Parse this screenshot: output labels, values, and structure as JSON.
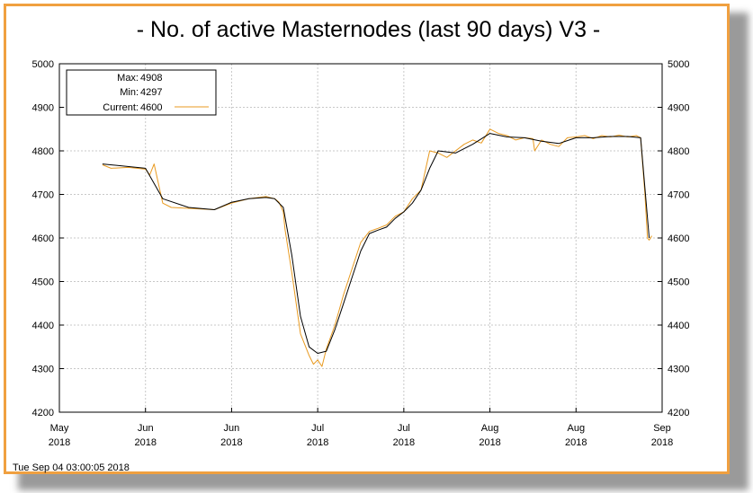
{
  "title": "- No. of active Masternodes (last 90 days) V3 -",
  "footer": "Tue Sep 04 03:00:05 2018",
  "legend": {
    "max_label": "Max:",
    "max_value": "4908",
    "min_label": "Min:",
    "min_value": "4297",
    "current_label": "Current:",
    "current_value": "4600"
  },
  "colors": {
    "frame": "#f0a040",
    "raw_series": "#e89a20",
    "smooth_series": "#000000",
    "grid": "#c8c8c8"
  },
  "chart_data": {
    "type": "line",
    "title": "- No. of active Masternodes (last 90 days) V3 -",
    "ylim": [
      4200,
      5000
    ],
    "y_ticks": [
      "4200",
      "4300",
      "4400",
      "4500",
      "4600",
      "4700",
      "4800",
      "4900",
      "5000"
    ],
    "x_ticks": [
      {
        "month": "May",
        "year": "2018"
      },
      {
        "month": "Jun",
        "year": "2018"
      },
      {
        "month": "Jun",
        "year": "2018"
      },
      {
        "month": "Jul",
        "year": "2018"
      },
      {
        "month": "Jul",
        "year": "2018"
      },
      {
        "month": "Aug",
        "year": "2018"
      },
      {
        "month": "Aug",
        "year": "2018"
      },
      {
        "month": "Sep",
        "year": "2018"
      }
    ],
    "grid": true,
    "legend_position": "top-left",
    "series": [
      {
        "name": "Current",
        "x": [
          0.5,
          0.6,
          0.8,
          1.0,
          1.05,
          1.1,
          1.2,
          1.3,
          1.5,
          1.8,
          2.0,
          2.2,
          2.4,
          2.5,
          2.55,
          2.6,
          2.62,
          2.7,
          2.8,
          2.9,
          2.95,
          3.0,
          3.05,
          3.1,
          3.2,
          3.3,
          3.4,
          3.5,
          3.6,
          3.7,
          3.8,
          3.9,
          4.0,
          4.1,
          4.2,
          4.3,
          4.4,
          4.5,
          4.6,
          4.7,
          4.8,
          4.9,
          5.0,
          5.1,
          5.2,
          5.3,
          5.4,
          5.5,
          5.52,
          5.6,
          5.7,
          5.8,
          5.9,
          6.0,
          6.1,
          6.2,
          6.3,
          6.4,
          6.5,
          6.6,
          6.7,
          6.75,
          6.8,
          6.83,
          6.85,
          6.88
        ],
        "values": [
          4768,
          4760,
          4762,
          4758,
          4745,
          4770,
          4680,
          4670,
          4668,
          4665,
          4680,
          4690,
          4695,
          4690,
          4682,
          4660,
          4620,
          4520,
          4380,
          4330,
          4310,
          4320,
          4305,
          4345,
          4400,
          4470,
          4530,
          4590,
          4615,
          4622,
          4630,
          4650,
          4660,
          4690,
          4710,
          4800,
          4795,
          4785,
          4800,
          4815,
          4825,
          4818,
          4850,
          4840,
          4835,
          4825,
          4830,
          4828,
          4800,
          4825,
          4815,
          4810,
          4830,
          4832,
          4835,
          4828,
          4835,
          4832,
          4836,
          4832,
          4835,
          4830,
          4700,
          4600,
          4595,
          4605
        ]
      },
      {
        "name": "",
        "x": [
          0.5,
          1.0,
          1.2,
          1.5,
          1.8,
          2.0,
          2.2,
          2.4,
          2.5,
          2.6,
          2.7,
          2.8,
          2.9,
          3.0,
          3.1,
          3.2,
          3.3,
          3.4,
          3.5,
          3.6,
          3.7,
          3.8,
          3.9,
          4.0,
          4.1,
          4.2,
          4.3,
          4.4,
          4.6,
          4.8,
          5.0,
          5.2,
          5.4,
          5.6,
          5.8,
          6.0,
          6.2,
          6.4,
          6.6,
          6.75,
          6.85
        ],
        "values": [
          4770,
          4760,
          4690,
          4670,
          4665,
          4682,
          4690,
          4693,
          4690,
          4670,
          4560,
          4420,
          4350,
          4335,
          4340,
          4390,
          4450,
          4510,
          4570,
          4610,
          4618,
          4625,
          4645,
          4660,
          4680,
          4710,
          4760,
          4800,
          4795,
          4815,
          4840,
          4832,
          4830,
          4822,
          4817,
          4830,
          4830,
          4833,
          4833,
          4830,
          4600
        ]
      }
    ]
  }
}
